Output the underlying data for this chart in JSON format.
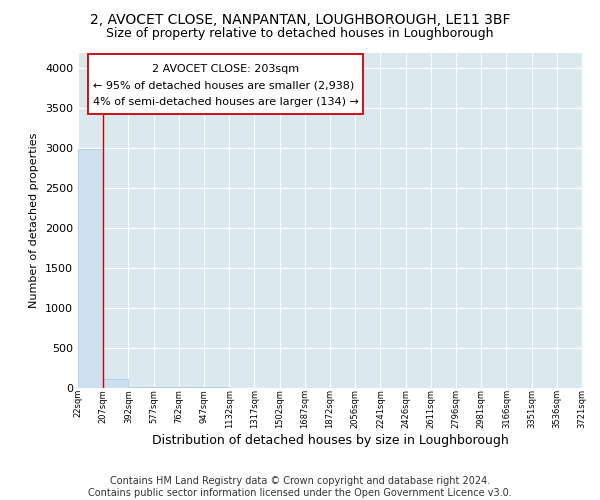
{
  "title": "2, AVOCET CLOSE, NANPANTAN, LOUGHBOROUGH, LE11 3BF",
  "subtitle": "Size of property relative to detached houses in Loughborough",
  "xlabel": "Distribution of detached houses by size in Loughborough",
  "ylabel": "Number of detached properties",
  "bar_values": [
    2990,
    110,
    5,
    2,
    1,
    1,
    0,
    0,
    0,
    0,
    0,
    0,
    0,
    0,
    0,
    0,
    0,
    0,
    0,
    0
  ],
  "x_labels": [
    "22sqm",
    "207sqm",
    "392sqm",
    "577sqm",
    "762sqm",
    "947sqm",
    "1132sqm",
    "1317sqm",
    "1502sqm",
    "1687sqm",
    "1872sqm",
    "2056sqm",
    "2241sqm",
    "2426sqm",
    "2611sqm",
    "2796sqm",
    "2981sqm",
    "3166sqm",
    "3351sqm",
    "3536sqm",
    "3721sqm"
  ],
  "ylim": [
    0,
    4200
  ],
  "yticks": [
    0,
    500,
    1000,
    1500,
    2000,
    2500,
    3000,
    3500,
    4000
  ],
  "bar_color": "#cce0f0",
  "bar_edge_color": "#a8c8e0",
  "bg_color": "#dce8f0",
  "grid_color": "#ffffff",
  "annotation_line1": "2 AVOCET CLOSE: 203sqm",
  "annotation_line2": "← 95% of detached houses are smaller (2,938)",
  "annotation_line3": "4% of semi-detached houses are larger (134) →",
  "vline_x": 1.0,
  "vline_color": "#cc0000",
  "annotation_box_color": "#cc0000",
  "footer_text": "Contains HM Land Registry data © Crown copyright and database right 2024.\nContains public sector information licensed under the Open Government Licence v3.0.",
  "title_fontsize": 10,
  "subtitle_fontsize": 9,
  "annotation_fontsize": 8,
  "footer_fontsize": 7,
  "ylabel_fontsize": 8,
  "xlabel_fontsize": 9
}
